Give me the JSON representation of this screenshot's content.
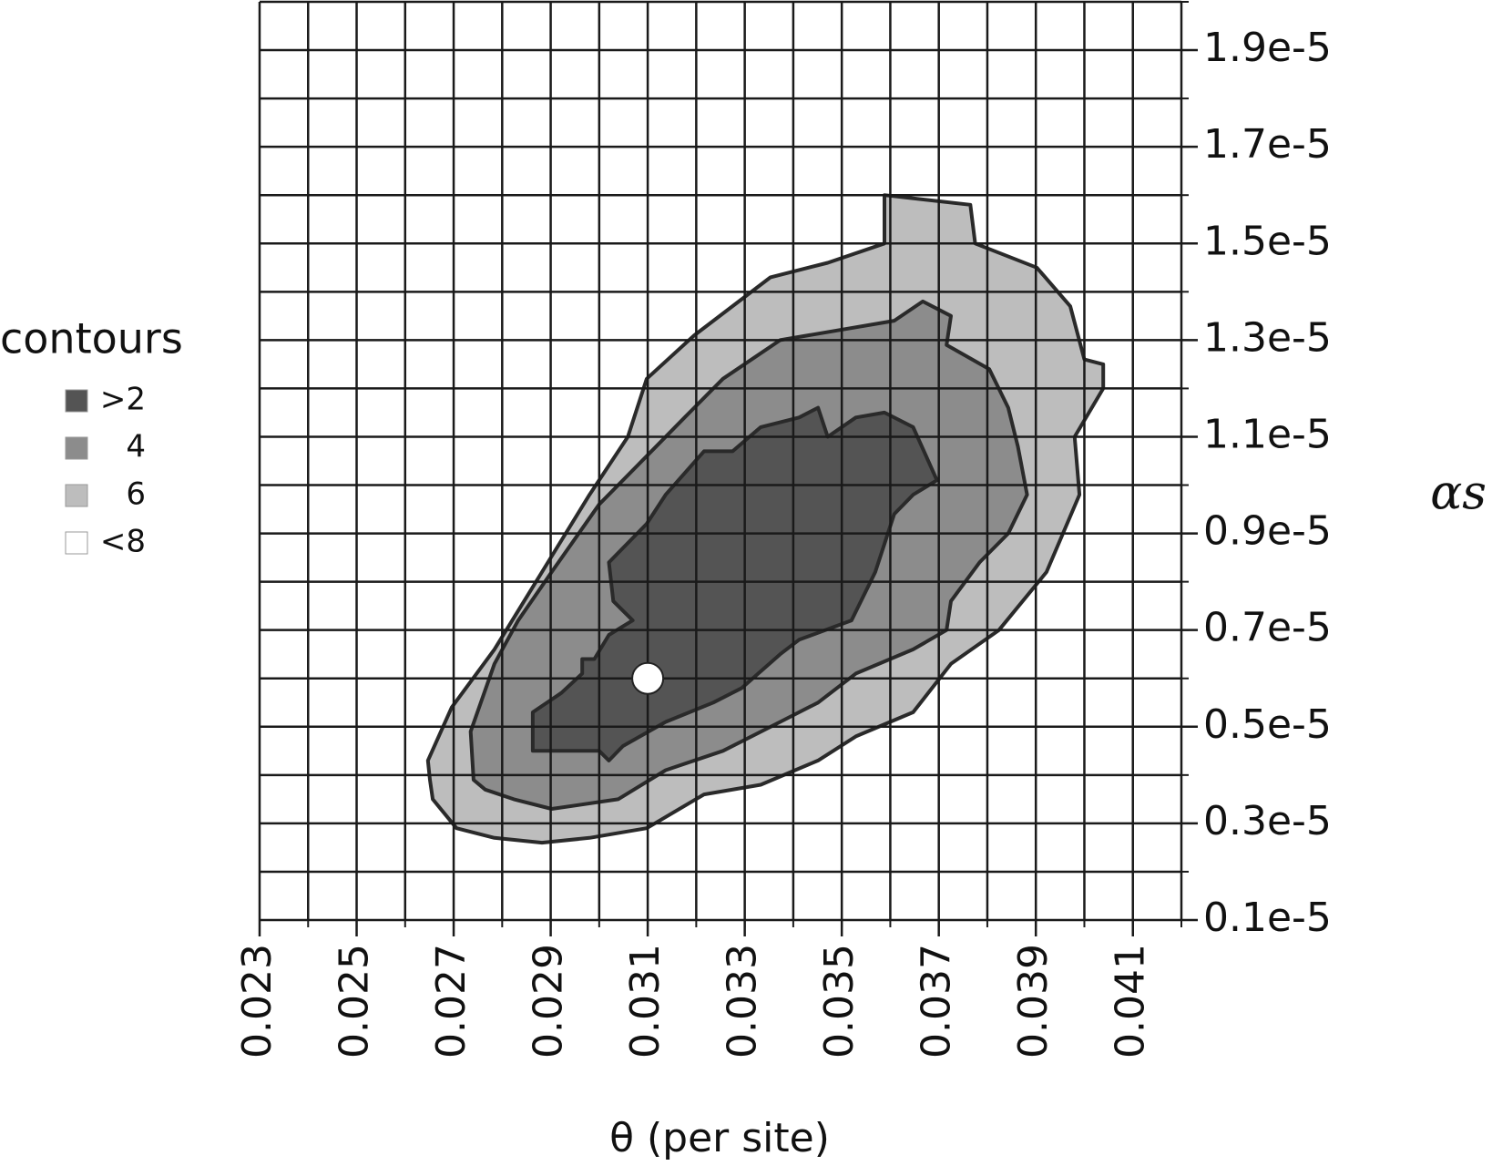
{
  "chart_data": {
    "type": "contour",
    "x_label": "θ (per site)",
    "y_label": "αs",
    "legend_title": "contours",
    "xlim": [
      0.023,
      0.042
    ],
    "ylim": [
      1e-06,
      2e-05
    ],
    "xticks": [
      0.023,
      0.025,
      0.027,
      0.029,
      0.031,
      0.033,
      0.035,
      0.037,
      0.039,
      0.041
    ],
    "yticks": [
      {
        "value": 1e-06,
        "label": "0.1e-5"
      },
      {
        "value": 3e-06,
        "label": "0.3e-5"
      },
      {
        "value": 5e-06,
        "label": "0.5e-5"
      },
      {
        "value": 7e-06,
        "label": "0.7e-5"
      },
      {
        "value": 9e-06,
        "label": "0.9e-5"
      },
      {
        "value": 1.1e-05,
        "label": "1.1e-5"
      },
      {
        "value": 1.3e-05,
        "label": "1.3e-5"
      },
      {
        "value": 1.5e-05,
        "label": "1.5e-5"
      },
      {
        "value": 1.7e-05,
        "label": "1.7e-5"
      },
      {
        "value": 1.9e-05,
        "label": "1.9e-5"
      }
    ],
    "grid": true,
    "xgrid": [
      0.023,
      0.024,
      0.025,
      0.026,
      0.027,
      0.028,
      0.029,
      0.03,
      0.031,
      0.032,
      0.033,
      0.034,
      0.035,
      0.036,
      0.037,
      0.038,
      0.039,
      0.04,
      0.041,
      0.042
    ],
    "ygrid": [
      1e-06,
      2e-06,
      3e-06,
      4e-06,
      5e-06,
      6e-06,
      7e-06,
      8e-06,
      9e-06,
      1e-05,
      1.1e-05,
      1.2e-05,
      1.3e-05,
      1.4e-05,
      1.5e-05,
      1.6e-05,
      1.7e-05,
      1.8e-05,
      1.9e-05,
      2e-05
    ],
    "legend": "left",
    "series": [
      {
        "name": ">2",
        "color": "#545454",
        "x": [
          0.02863,
          0.02863,
          0.02922,
          0.02965,
          0.02965,
          0.0299,
          0.0302,
          0.03069,
          0.03029,
          0.0302,
          0.03098,
          0.03137,
          0.03216,
          0.03275,
          0.03333,
          0.03412,
          0.03451,
          0.03471,
          0.03529,
          0.03588,
          0.03647,
          0.03696,
          0.03647,
          0.03608,
          0.03569,
          0.0352,
          0.03412,
          0.03373,
          0.03294,
          0.03235,
          0.03137,
          0.03049,
          0.0302,
          0.03,
          0.02961,
          0.02902
        ],
        "y": [
          4.5e-06,
          5.3e-06,
          5.7e-06,
          6.1e-06,
          6.4e-06,
          6.4e-06,
          6.9e-06,
          7.2e-06,
          7.6e-06,
          8.4e-06,
          9.2e-06,
          9.8e-06,
          1.07e-05,
          1.07e-05,
          1.12e-05,
          1.14e-05,
          1.16e-05,
          1.1e-05,
          1.14e-05,
          1.15e-05,
          1.12e-05,
          1.01e-05,
          9.8e-06,
          9.4e-06,
          8.2e-06,
          7.2e-06,
          6.8e-06,
          6.5e-06,
          5.8e-06,
          5.5e-06,
          5.1e-06,
          4.6e-06,
          4.3e-06,
          4.5e-06,
          4.5e-06,
          4.5e-06
        ]
      },
      {
        "name": "4",
        "color": "#8c8c8c",
        "x": [
          0.02741,
          0.02735,
          0.02784,
          0.02833,
          0.02902,
          0.03,
          0.03098,
          0.03176,
          0.03255,
          0.03373,
          0.0349,
          0.03608,
          0.03667,
          0.03725,
          0.03716,
          0.03804,
          0.03843,
          0.03863,
          0.03882,
          0.03843,
          0.03784,
          0.03725,
          0.03716,
          0.03647,
          0.03529,
          0.03451,
          0.03373,
          0.03255,
          0.03137,
          0.03039,
          0.02902,
          0.02824,
          0.02765
        ],
        "y": [
          3.9e-06,
          4.9e-06,
          6.3e-06,
          7.2e-06,
          8.2e-06,
          9.6e-06,
          1.06e-05,
          1.14e-05,
          1.22e-05,
          1.3e-05,
          1.32e-05,
          1.34e-05,
          1.38e-05,
          1.35e-05,
          1.29e-05,
          1.24e-05,
          1.16e-05,
          1.08e-05,
          9.8e-06,
          9e-06,
          8.4e-06,
          7.6e-06,
          7e-06,
          6.6e-06,
          6.1e-06,
          5.5e-06,
          5.1e-06,
          4.5e-06,
          4.1e-06,
          3.5e-06,
          3.3e-06,
          3.5e-06,
          3.7e-06
        ]
      },
      {
        "name": "6",
        "color": "#bdbdbd",
        "x": [
          0.02651,
          0.02647,
          0.02696,
          0.02784,
          0.02882,
          0.0298,
          0.03059,
          0.03098,
          0.03196,
          0.03353,
          0.03471,
          0.03588,
          0.03588,
          0.03765,
          0.03775,
          0.03902,
          0.03971,
          0.04,
          0.04039,
          0.04039,
          0.0398,
          0.0399,
          0.03922,
          0.03824,
          0.03725,
          0.03647,
          0.03529,
          0.03451,
          0.03333,
          0.03216,
          0.03098,
          0.0298,
          0.02882,
          0.02784,
          0.02706,
          0.02657
        ],
        "y": [
          3.9e-06,
          4.3e-06,
          5.4e-06,
          6.6e-06,
          8.2e-06,
          9.8e-06,
          1.1e-05,
          1.22e-05,
          1.31e-05,
          1.43e-05,
          1.46e-05,
          1.5e-05,
          1.6e-05,
          1.58e-05,
          1.5e-05,
          1.45e-05,
          1.37e-05,
          1.26e-05,
          1.25e-05,
          1.2e-05,
          1.1e-05,
          9.8e-06,
          8.2e-06,
          7e-06,
          6.3e-06,
          5.3e-06,
          4.8e-06,
          4.3e-06,
          3.8e-06,
          3.6e-06,
          2.9e-06,
          2.7e-06,
          2.6e-06,
          2.7e-06,
          2.9e-06,
          3.5e-06
        ]
      },
      {
        "name": "<8",
        "color": "#ffffff"
      }
    ],
    "marker": {
      "x": 0.031,
      "y": 6e-06,
      "color": "#ffffff"
    }
  }
}
